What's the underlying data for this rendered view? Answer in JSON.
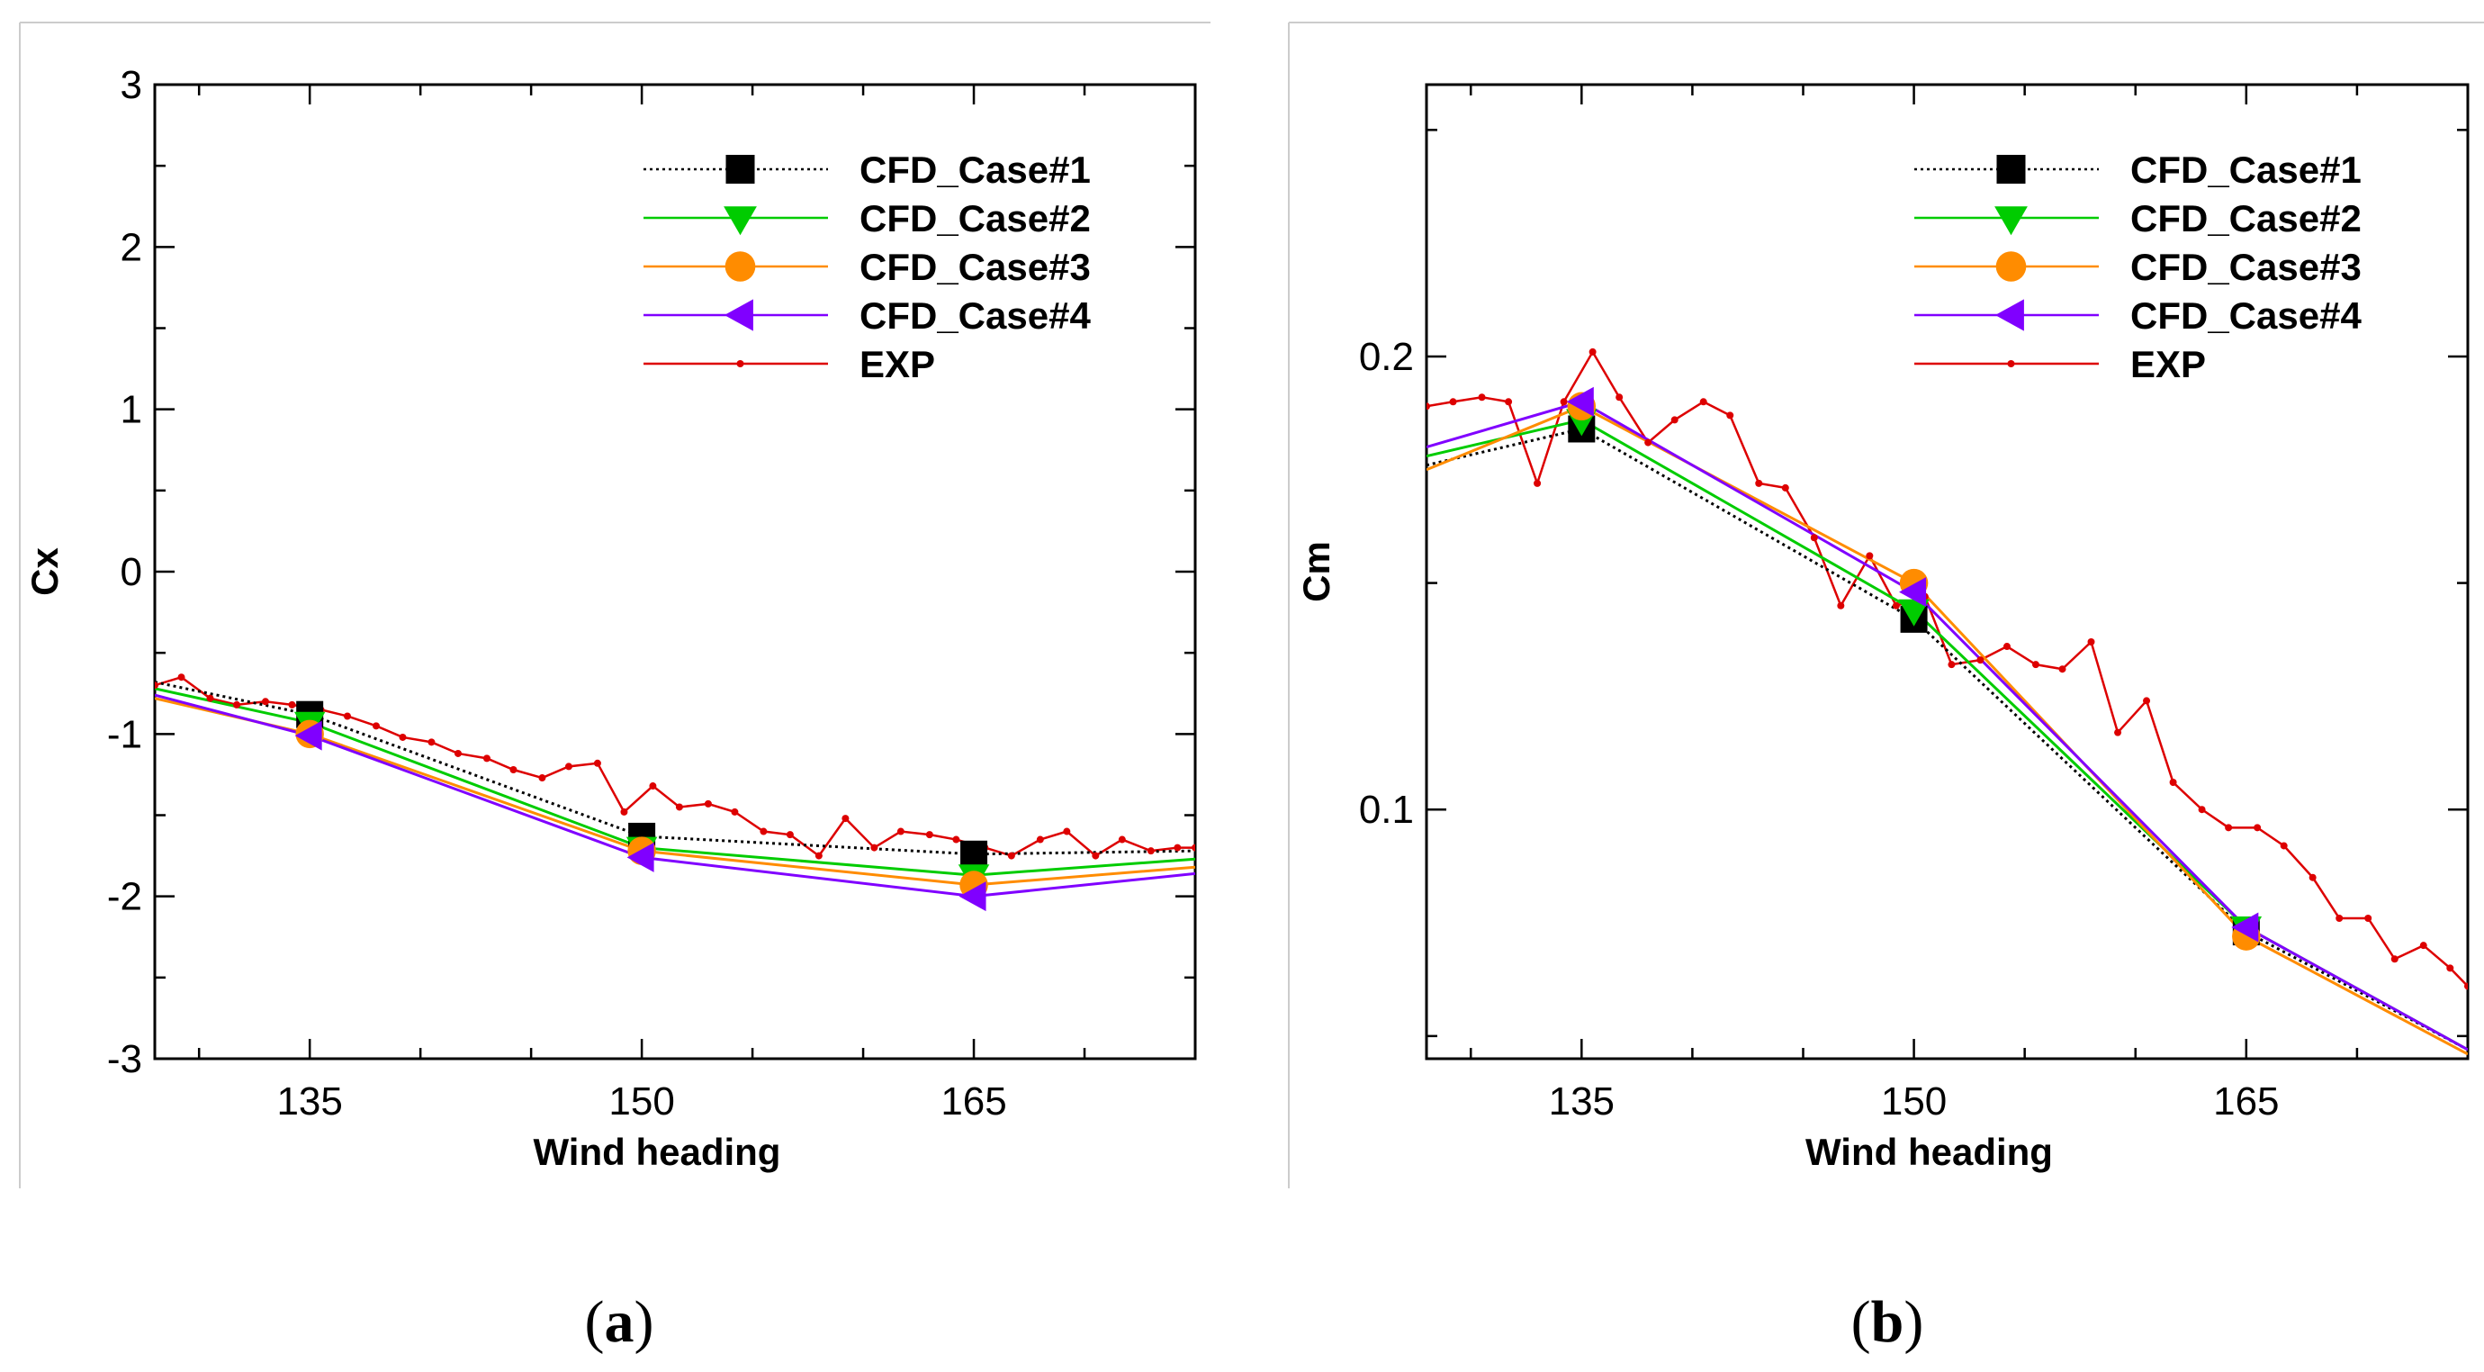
{
  "chart_data": [
    {
      "type": "line",
      "panel_label": "a",
      "xlabel": "Wind heading",
      "ylabel": "Cx",
      "xlim": [
        128,
        175
      ],
      "ylim": [
        -3,
        3
      ],
      "xticks": [
        135,
        150,
        165
      ],
      "yticks": [
        3,
        2,
        1,
        0,
        -1,
        -2,
        -3
      ],
      "ytick_labels": [
        "3",
        "2",
        "1",
        "0",
        "-1",
        "-2",
        "-3"
      ],
      "legend_position": "top-right",
      "series": [
        {
          "name": "CFD_Case#1",
          "color": "#000000",
          "marker": "square",
          "dash": "dotted",
          "x": [
            128,
            135,
            150,
            165,
            175
          ],
          "y": [
            -0.68,
            -0.88,
            -1.63,
            -1.74,
            -1.72
          ]
        },
        {
          "name": "CFD_Case#2",
          "color": "#00cc00",
          "marker": "triangle-down",
          "dash": "solid",
          "x": [
            128,
            135,
            150,
            165,
            175
          ],
          "y": [
            -0.72,
            -0.93,
            -1.7,
            -1.87,
            -1.77
          ]
        },
        {
          "name": "CFD_Case#3",
          "color": "#ff8c00",
          "marker": "circle",
          "dash": "solid",
          "x": [
            128,
            135,
            150,
            165,
            175
          ],
          "y": [
            -0.78,
            -1.0,
            -1.72,
            -1.93,
            -1.82
          ]
        },
        {
          "name": "CFD_Case#4",
          "color": "#8000ff",
          "marker": "triangle-left",
          "dash": "solid",
          "x": [
            128,
            135,
            150,
            165,
            175
          ],
          "y": [
            -0.76,
            -1.01,
            -1.76,
            -2.0,
            -1.86
          ]
        },
        {
          "name": "EXP",
          "color": "#dd0000",
          "marker": "dot",
          "dash": "solid",
          "x": [
            128,
            129.2,
            130.5,
            131.7,
            133,
            134.2,
            135.5,
            136.7,
            138,
            139.2,
            140.5,
            141.7,
            143,
            144.2,
            145.5,
            146.7,
            148,
            149.2,
            150.5,
            151.7,
            153,
            154.2,
            155.5,
            156.7,
            158,
            159.2,
            160.5,
            161.7,
            163,
            164.2,
            165.5,
            166.7,
            168,
            169.2,
            170.5,
            171.7,
            173,
            174.2,
            175
          ],
          "y": [
            -0.7,
            -0.65,
            -0.78,
            -0.82,
            -0.8,
            -0.82,
            -0.85,
            -0.89,
            -0.95,
            -1.02,
            -1.05,
            -1.12,
            -1.15,
            -1.22,
            -1.27,
            -1.2,
            -1.18,
            -1.48,
            -1.32,
            -1.45,
            -1.43,
            -1.48,
            -1.6,
            -1.62,
            -1.75,
            -1.52,
            -1.7,
            -1.6,
            -1.62,
            -1.65,
            -1.7,
            -1.75,
            -1.65,
            -1.6,
            -1.75,
            -1.65,
            -1.72,
            -1.7,
            -1.7
          ]
        }
      ]
    },
    {
      "type": "line",
      "panel_label": "b",
      "xlabel": "Wind heading",
      "ylabel": "Cm",
      "xlim": [
        128,
        175
      ],
      "ylim": [
        0.045,
        0.26
      ],
      "xticks": [
        135,
        150,
        165
      ],
      "yticks": [
        0.2,
        0.1
      ],
      "ytick_labels": [
        "0.2",
        "0.1"
      ],
      "legend_position": "top-right",
      "series": [
        {
          "name": "CFD_Case#1",
          "color": "#000000",
          "marker": "square",
          "dash": "dotted",
          "x": [
            128,
            135,
            150,
            165,
            175
          ],
          "y": [
            0.176,
            0.184,
            0.142,
            0.073,
            0.047
          ]
        },
        {
          "name": "CFD_Case#2",
          "color": "#00cc00",
          "marker": "triangle-down",
          "dash": "solid",
          "x": [
            128,
            135,
            150,
            165,
            175
          ],
          "y": [
            0.178,
            0.186,
            0.144,
            0.074,
            0.047
          ]
        },
        {
          "name": "CFD_Case#3",
          "color": "#ff8c00",
          "marker": "circle",
          "dash": "solid",
          "x": [
            128,
            135,
            150,
            165,
            175
          ],
          "y": [
            0.175,
            0.189,
            0.15,
            0.072,
            0.046
          ]
        },
        {
          "name": "CFD_Case#4",
          "color": "#8000ff",
          "marker": "triangle-left",
          "dash": "solid",
          "x": [
            128,
            135,
            150,
            165,
            175
          ],
          "y": [
            0.18,
            0.19,
            0.148,
            0.074,
            0.047
          ]
        },
        {
          "name": "EXP",
          "color": "#dd0000",
          "marker": "dot",
          "dash": "solid",
          "x": [
            128,
            129.2,
            130.5,
            131.7,
            133,
            134.2,
            135.5,
            136.7,
            138,
            139.2,
            140.5,
            141.7,
            143,
            144.2,
            145.5,
            146.7,
            148,
            149.2,
            150.5,
            151.7,
            153,
            154.2,
            155.5,
            156.7,
            158,
            159.2,
            160.5,
            161.7,
            163,
            164.2,
            165.5,
            166.7,
            168,
            169.2,
            170.5,
            171.7,
            173,
            174.2,
            175
          ],
          "y": [
            0.189,
            0.19,
            0.191,
            0.19,
            0.172,
            0.19,
            0.201,
            0.191,
            0.181,
            0.186,
            0.19,
            0.187,
            0.172,
            0.171,
            0.16,
            0.145,
            0.156,
            0.145,
            0.147,
            0.132,
            0.133,
            0.136,
            0.132,
            0.131,
            0.137,
            0.117,
            0.124,
            0.106,
            0.1,
            0.096,
            0.096,
            0.092,
            0.085,
            0.076,
            0.076,
            0.067,
            0.07,
            0.065,
            0.061
          ]
        }
      ]
    }
  ]
}
